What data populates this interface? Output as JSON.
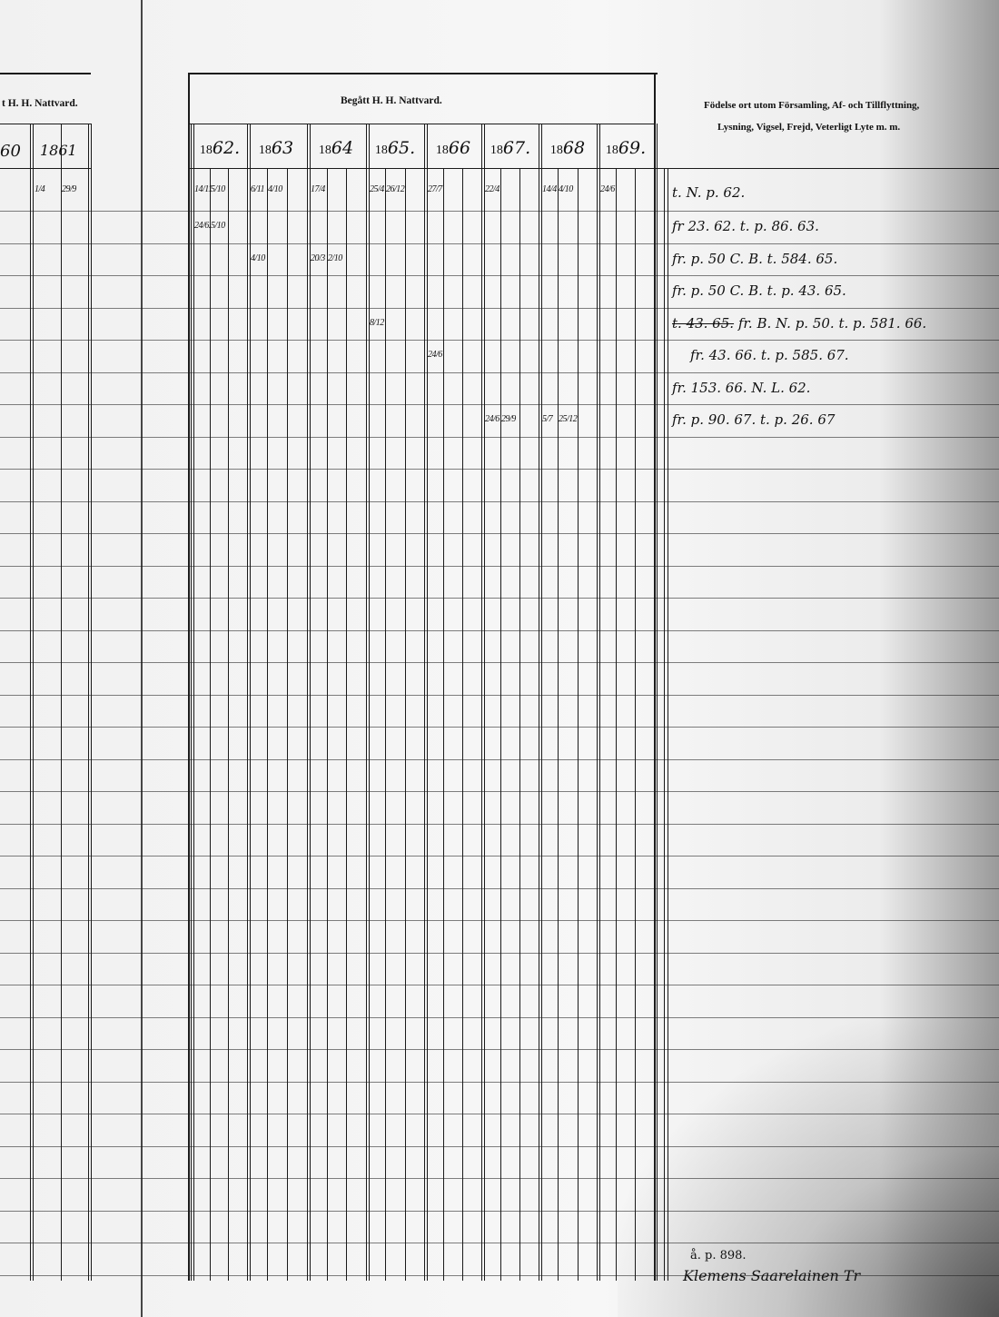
{
  "left_page": {
    "header": "t H. H. Nattvard.",
    "years": [
      "60",
      "1861"
    ],
    "entries": [
      {
        "year_index": 1,
        "col": 0,
        "row": 0,
        "value": "1/4"
      },
      {
        "year_index": 1,
        "col": 1,
        "row": 0,
        "value": "29/9"
      }
    ]
  },
  "main_table": {
    "header": "Begått H. H. Nattvard.",
    "years": [
      {
        "prefix": "18",
        "suffix": "62."
      },
      {
        "prefix": "18",
        "suffix": "63"
      },
      {
        "prefix": "18",
        "suffix": "64"
      },
      {
        "prefix": "18",
        "suffix": "65."
      },
      {
        "prefix": "18",
        "suffix": "66"
      },
      {
        "prefix": "18",
        "suffix": "67."
      },
      {
        "prefix": "18",
        "suffix": "68"
      },
      {
        "prefix": "18",
        "suffix": "69."
      }
    ],
    "entries": [
      {
        "year_index": 0,
        "col": 0,
        "row": 0,
        "value": "14/11"
      },
      {
        "year_index": 0,
        "col": 1,
        "row": 0,
        "value": "5/10"
      },
      {
        "year_index": 0,
        "col": 0,
        "row": 1,
        "value": "24/6."
      },
      {
        "year_index": 0,
        "col": 1,
        "row": 1,
        "value": "5/10"
      },
      {
        "year_index": 1,
        "col": 0,
        "row": 0,
        "value": "6/11"
      },
      {
        "year_index": 1,
        "col": 1,
        "row": 0,
        "value": "4/10"
      },
      {
        "year_index": 1,
        "col": 0,
        "row": 2,
        "value": "4/10"
      },
      {
        "year_index": 2,
        "col": 0,
        "row": 0,
        "value": "17/4"
      },
      {
        "year_index": 2,
        "col": 0,
        "row": 2,
        "value": "20/3"
      },
      {
        "year_index": 2,
        "col": 1,
        "row": 2,
        "value": "2/10"
      },
      {
        "year_index": 3,
        "col": 0,
        "row": 0,
        "value": "25/4"
      },
      {
        "year_index": 3,
        "col": 1,
        "row": 0,
        "value": "26/12"
      },
      {
        "year_index": 3,
        "col": 0,
        "row": 4,
        "value": "8/12"
      },
      {
        "year_index": 4,
        "col": 0,
        "row": 0,
        "value": "27/7"
      },
      {
        "year_index": 4,
        "col": 0,
        "row": 5,
        "value": "24/6"
      },
      {
        "year_index": 5,
        "col": 0,
        "row": 0,
        "value": "22/4"
      },
      {
        "year_index": 5,
        "col": 0,
        "row": 7,
        "value": "24/6"
      },
      {
        "year_index": 5,
        "col": 1,
        "row": 7,
        "value": "29/9"
      },
      {
        "year_index": 6,
        "col": 0,
        "row": 0,
        "value": "14/4"
      },
      {
        "year_index": 6,
        "col": 1,
        "row": 0,
        "value": "4/10"
      },
      {
        "year_index": 6,
        "col": 0,
        "row": 7,
        "value": "5/7"
      },
      {
        "year_index": 6,
        "col": 1,
        "row": 7,
        "value": "25/12"
      },
      {
        "year_index": 7,
        "col": 0,
        "row": 0,
        "value": "24/6"
      }
    ]
  },
  "remarks": {
    "header_line1": "Födelse ort utom Församling, Af- och Tillflyttning,",
    "header_line2": "Lysning, Vigsel, Frejd, Veterligt Lyte m. m.",
    "notes": [
      {
        "text": "t. N. p. 62."
      },
      {
        "text": "fr 23. 62. t. p. 86. 63."
      },
      {
        "text": "fr. p. 50 C. B. t. 584. 65."
      },
      {
        "text": "fr. p. 50 C. B. t. p. 43. 65."
      },
      {
        "struck": "t. 43. 65.",
        "text": "fr. B. N. p. 50. t. p. 581. 66."
      },
      {
        "text": "fr. 43. 66. t. p. 585. 67."
      },
      {
        "text": "fr. 153. 66. N. L. 62."
      },
      {
        "text": "fr. p. 90. 67. t. p. 26. 67"
      }
    ],
    "footer_ref": "å. p. 898.",
    "footer_signature": "Klemens Saarelainen Tr"
  }
}
